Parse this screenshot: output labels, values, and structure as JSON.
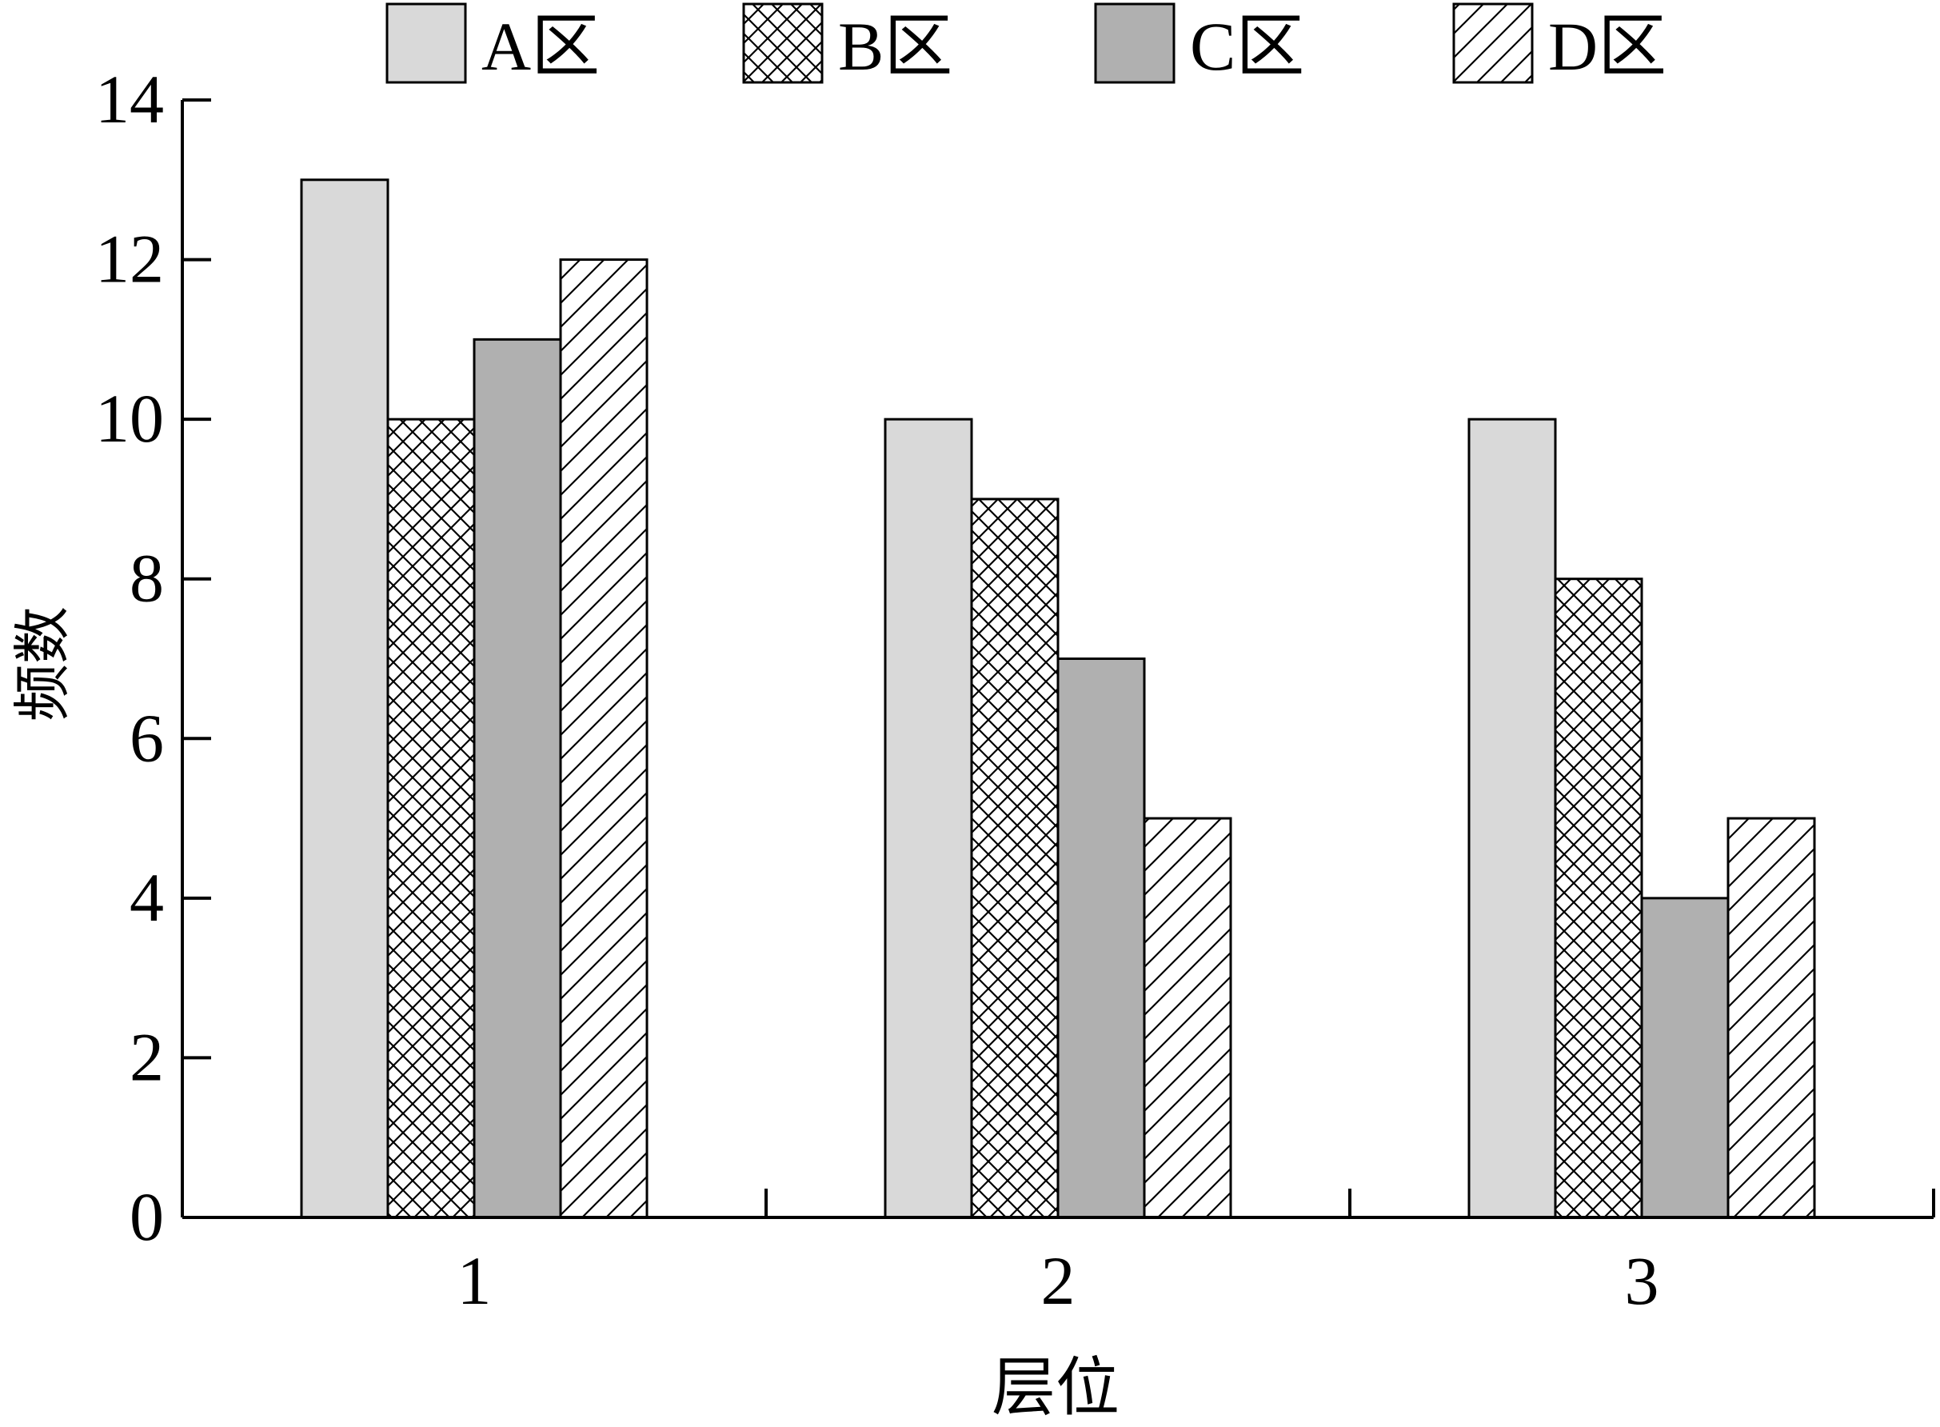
{
  "chart_data": {
    "type": "bar",
    "categories": [
      "1",
      "2",
      "3"
    ],
    "series": [
      {
        "name": "A区",
        "values": [
          13,
          10,
          10
        ],
        "pattern": "solid",
        "color": "#d9d9d9"
      },
      {
        "name": "B区",
        "values": [
          10,
          9,
          8
        ],
        "pattern": "crosshatch",
        "color": "#ffffff"
      },
      {
        "name": "C区",
        "values": [
          11,
          7,
          4
        ],
        "pattern": "solid",
        "color": "#b0b0b0"
      },
      {
        "name": "D区",
        "values": [
          12,
          5,
          5
        ],
        "pattern": "diagonal",
        "color": "#ffffff"
      }
    ],
    "xlabel": "层位",
    "ylabel": "频数",
    "ylim": [
      0,
      14
    ],
    "yticks": [
      "0",
      "2",
      "4",
      "6",
      "8",
      "10",
      "12",
      "14"
    ],
    "grid": false,
    "legend_position": "top"
  }
}
